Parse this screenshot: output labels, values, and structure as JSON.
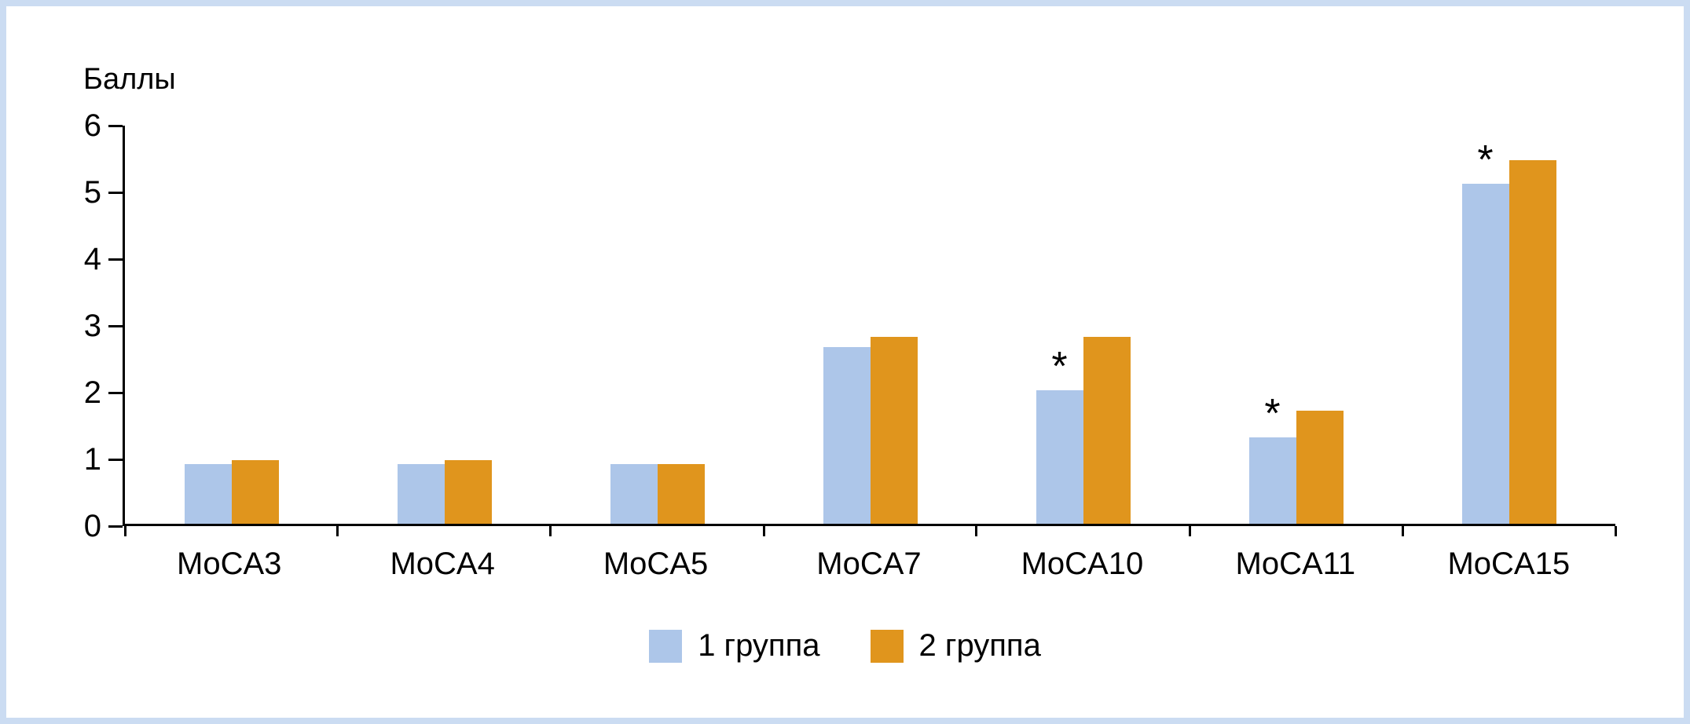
{
  "figure": {
    "border_color": "#cbdcf2",
    "background": "#ffffff",
    "axis_color": "#000000"
  },
  "chart_data": {
    "type": "bar",
    "title": "",
    "ylabel": "Баллы",
    "xlabel": "",
    "categories": [
      "MoCA3",
      "MoCA4",
      "MoCA5",
      "MoCA7",
      "MoCA10",
      "MoCA11",
      "MoCA15"
    ],
    "series": [
      {
        "name": "1 группа",
        "color": "#adc6e9",
        "values": [
          0.9,
          0.9,
          0.9,
          2.65,
          2.0,
          1.3,
          5.1
        ],
        "marks": [
          "",
          "",
          "",
          "",
          "*",
          "*",
          "*"
        ]
      },
      {
        "name": "2 группа",
        "color": "#e0951d",
        "values": [
          0.95,
          0.95,
          0.9,
          2.8,
          2.8,
          1.7,
          5.45
        ],
        "marks": [
          "",
          "",
          "",
          "",
          "",
          "",
          ""
        ]
      }
    ],
    "ylim": [
      0,
      6
    ],
    "yticks": [
      0,
      1,
      2,
      3,
      4,
      5,
      6
    ],
    "grid": false,
    "legend_position": "bottom"
  }
}
